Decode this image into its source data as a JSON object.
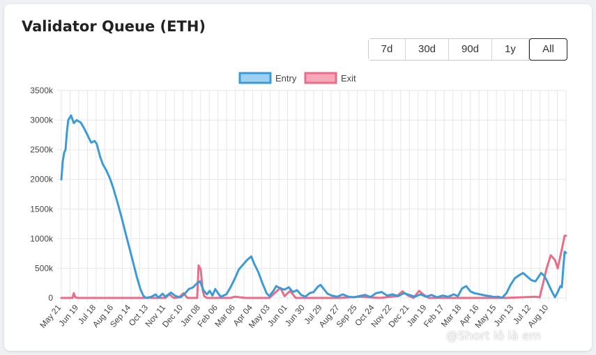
{
  "header": {
    "title": "Validator Queue (ETH)"
  },
  "range_buttons": [
    {
      "label": "7d",
      "active": false
    },
    {
      "label": "30d",
      "active": false
    },
    {
      "label": "90d",
      "active": false
    },
    {
      "label": "1y",
      "active": false
    },
    {
      "label": "All",
      "active": true
    }
  ],
  "watermark": {
    "text": "@Short lô là em"
  },
  "colors": {
    "entry": "#3b9bd9",
    "exit": "#ec6b86",
    "entry_fill": "#9fd0f2",
    "exit_fill": "#f7a8ba",
    "grid": "#e6e6e6"
  },
  "chart_data": {
    "type": "line",
    "title": "Validator Queue (ETH)",
    "ylim": [
      0,
      3500000
    ],
    "yticks": [
      "0",
      "500k",
      "1000k",
      "1500k",
      "2000k",
      "2500k",
      "3000k",
      "3500k"
    ],
    "x_tick_labels": [
      "May 21",
      "Jun 19",
      "Jul 18",
      "Aug 16",
      "Sep 14",
      "Oct 13",
      "Nov 11",
      "Dec 10",
      "Jan 08",
      "Feb 06",
      "Mar 06",
      "Apr 04",
      "May 03",
      "Jun 01",
      "Jun 30",
      "Jul 29",
      "Aug 27",
      "Sep 25",
      "Oct 24",
      "Nov 22",
      "Dec 21",
      "Jan 19",
      "Feb 17",
      "Mar 18",
      "Apr 16",
      "May 15",
      "Jun 13",
      "Jul 12",
      "Aug 10"
    ],
    "legend_position": "top",
    "grid": true,
    "series": [
      {
        "name": "Entry",
        "points": [
          [
            0,
            2000000
          ],
          [
            2,
            2300000
          ],
          [
            4,
            2450000
          ],
          [
            6,
            2500000
          ],
          [
            8,
            2800000
          ],
          [
            10,
            3000000
          ],
          [
            14,
            3080000
          ],
          [
            18,
            2950000
          ],
          [
            22,
            3000000
          ],
          [
            28,
            2960000
          ],
          [
            33,
            2860000
          ],
          [
            38,
            2740000
          ],
          [
            43,
            2620000
          ],
          [
            48,
            2650000
          ],
          [
            51,
            2600000
          ],
          [
            56,
            2380000
          ],
          [
            60,
            2250000
          ],
          [
            65,
            2150000
          ],
          [
            70,
            2020000
          ],
          [
            75,
            1850000
          ],
          [
            80,
            1650000
          ],
          [
            86,
            1400000
          ],
          [
            92,
            1120000
          ],
          [
            98,
            850000
          ],
          [
            104,
            580000
          ],
          [
            109,
            350000
          ],
          [
            114,
            150000
          ],
          [
            118,
            40000
          ],
          [
            122,
            0
          ],
          [
            130,
            20000
          ],
          [
            136,
            60000
          ],
          [
            140,
            5000
          ],
          [
            146,
            70000
          ],
          [
            150,
            20000
          ],
          [
            158,
            90000
          ],
          [
            165,
            30000
          ],
          [
            172,
            10000
          ],
          [
            178,
            70000
          ],
          [
            184,
            150000
          ],
          [
            190,
            180000
          ],
          [
            196,
            250000
          ],
          [
            200,
            280000
          ],
          [
            205,
            130000
          ],
          [
            210,
            60000
          ],
          [
            214,
            120000
          ],
          [
            218,
            40000
          ],
          [
            222,
            150000
          ],
          [
            226,
            80000
          ],
          [
            230,
            20000
          ],
          [
            238,
            60000
          ],
          [
            244,
            180000
          ],
          [
            250,
            320000
          ],
          [
            256,
            480000
          ],
          [
            262,
            560000
          ],
          [
            268,
            640000
          ],
          [
            274,
            700000
          ],
          [
            278,
            580000
          ],
          [
            284,
            440000
          ],
          [
            290,
            250000
          ],
          [
            296,
            80000
          ],
          [
            300,
            30000
          ],
          [
            306,
            120000
          ],
          [
            310,
            200000
          ],
          [
            316,
            160000
          ],
          [
            322,
            140000
          ],
          [
            328,
            180000
          ],
          [
            334,
            100000
          ],
          [
            340,
            130000
          ],
          [
            346,
            50000
          ],
          [
            352,
            20000
          ],
          [
            358,
            80000
          ],
          [
            364,
            100000
          ],
          [
            370,
            190000
          ],
          [
            374,
            220000
          ],
          [
            378,
            160000
          ],
          [
            384,
            70000
          ],
          [
            390,
            40000
          ],
          [
            398,
            20000
          ],
          [
            406,
            60000
          ],
          [
            414,
            20000
          ],
          [
            422,
            10000
          ],
          [
            430,
            30000
          ],
          [
            438,
            50000
          ],
          [
            446,
            15000
          ],
          [
            454,
            80000
          ],
          [
            462,
            100000
          ],
          [
            470,
            40000
          ],
          [
            478,
            60000
          ],
          [
            486,
            30000
          ],
          [
            494,
            80000
          ],
          [
            502,
            50000
          ],
          [
            510,
            20000
          ],
          [
            518,
            60000
          ],
          [
            526,
            20000
          ],
          [
            534,
            50000
          ],
          [
            542,
            10000
          ],
          [
            550,
            40000
          ],
          [
            558,
            20000
          ],
          [
            566,
            60000
          ],
          [
            572,
            30000
          ],
          [
            578,
            160000
          ],
          [
            584,
            200000
          ],
          [
            590,
            110000
          ],
          [
            596,
            80000
          ],
          [
            604,
            60000
          ],
          [
            612,
            40000
          ],
          [
            618,
            30000
          ],
          [
            624,
            15000
          ],
          [
            630,
            20000
          ],
          [
            636,
            5000
          ],
          [
            642,
            80000
          ],
          [
            648,
            220000
          ],
          [
            654,
            330000
          ],
          [
            660,
            380000
          ],
          [
            666,
            420000
          ],
          [
            672,
            360000
          ],
          [
            678,
            300000
          ],
          [
            684,
            280000
          ],
          [
            688,
            350000
          ],
          [
            692,
            420000
          ],
          [
            696,
            380000
          ],
          [
            700,
            300000
          ],
          [
            704,
            200000
          ],
          [
            708,
            100000
          ],
          [
            712,
            10000
          ],
          [
            716,
            100000
          ],
          [
            720,
            200000
          ],
          [
            722,
            180000
          ],
          [
            724,
            500000
          ],
          [
            726,
            780000
          ],
          [
            728,
            760000
          ]
        ]
      },
      {
        "name": "Exit",
        "points": [
          [
            0,
            0
          ],
          [
            16,
            0
          ],
          [
            18,
            80000
          ],
          [
            20,
            10000
          ],
          [
            24,
            0
          ],
          [
            150,
            0
          ],
          [
            156,
            60000
          ],
          [
            162,
            0
          ],
          [
            170,
            10000
          ],
          [
            176,
            80000
          ],
          [
            182,
            0
          ],
          [
            196,
            0
          ],
          [
            198,
            550000
          ],
          [
            201,
            480000
          ],
          [
            204,
            120000
          ],
          [
            206,
            30000
          ],
          [
            210,
            0
          ],
          [
            244,
            0
          ],
          [
            250,
            20000
          ],
          [
            258,
            10000
          ],
          [
            266,
            0
          ],
          [
            300,
            0
          ],
          [
            316,
            170000
          ],
          [
            322,
            30000
          ],
          [
            330,
            120000
          ],
          [
            338,
            0
          ],
          [
            400,
            0
          ],
          [
            430,
            20000
          ],
          [
            460,
            0
          ],
          [
            484,
            30000
          ],
          [
            492,
            110000
          ],
          [
            500,
            40000
          ],
          [
            508,
            0
          ],
          [
            516,
            120000
          ],
          [
            522,
            60000
          ],
          [
            530,
            0
          ],
          [
            560,
            0
          ],
          [
            600,
            0
          ],
          [
            640,
            0
          ],
          [
            684,
            20000
          ],
          [
            690,
            10000
          ],
          [
            696,
            300000
          ],
          [
            700,
            500000
          ],
          [
            706,
            720000
          ],
          [
            712,
            640000
          ],
          [
            716,
            500000
          ],
          [
            722,
            820000
          ],
          [
            726,
            1050000
          ],
          [
            728,
            1050000
          ]
        ]
      }
    ],
    "x_domain": [
      0,
      728
    ]
  }
}
